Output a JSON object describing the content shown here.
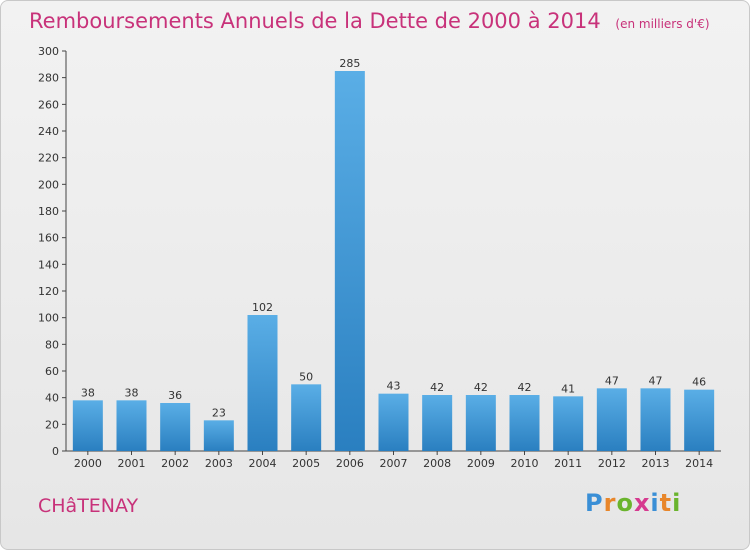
{
  "header": {
    "title": "Remboursements Annuels de la Dette de 2000 à 2014",
    "unit": "(en milliers d'€)"
  },
  "footer": {
    "town": "CHâTENAY",
    "logo_text": "Proxiti"
  },
  "colors": {
    "accent": "#c8327a",
    "bar_light": "#5aaee6",
    "bar_dark": "#2a7fc0"
  },
  "chart_data": {
    "type": "bar",
    "title": "Remboursements Annuels de la Dette de 2000 à 2014",
    "subtitle": "(en milliers d'€)",
    "categories": [
      "2000",
      "2001",
      "2002",
      "2003",
      "2004",
      "2005",
      "2006",
      "2007",
      "2008",
      "2009",
      "2010",
      "2011",
      "2012",
      "2013",
      "2014"
    ],
    "values": [
      38,
      38,
      36,
      23,
      102,
      50,
      285,
      43,
      42,
      42,
      42,
      41,
      47,
      47,
      46
    ],
    "ylim": [
      0,
      300
    ],
    "yticks": [
      0,
      20,
      40,
      60,
      80,
      100,
      120,
      140,
      160,
      180,
      200,
      220,
      240,
      260,
      280,
      300
    ],
    "grid": false,
    "legend": "none"
  }
}
